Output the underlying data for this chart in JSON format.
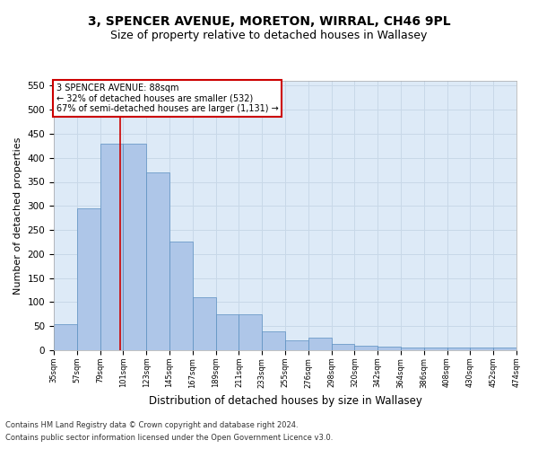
{
  "title1": "3, SPENCER AVENUE, MORETON, WIRRAL, CH46 9PL",
  "title2": "Size of property relative to detached houses in Wallasey",
  "xlabel": "Distribution of detached houses by size in Wallasey",
  "ylabel": "Number of detached properties",
  "bar_values": [
    55,
    295,
    430,
    430,
    370,
    225,
    110,
    75,
    75,
    40,
    20,
    27,
    13,
    10,
    8,
    5,
    5,
    5,
    5,
    5
  ],
  "bar_labels": [
    "35sqm",
    "57sqm",
    "79sqm",
    "101sqm",
    "123sqm",
    "145sqm",
    "167sqm",
    "189sqm",
    "211sqm",
    "233sqm",
    "255sqm",
    "276sqm",
    "298sqm",
    "320sqm",
    "342sqm",
    "364sqm",
    "386sqm",
    "408sqm",
    "430sqm",
    "452sqm",
    "474sqm"
  ],
  "bar_color": "#aec6e8",
  "bar_edge_color": "#5a8fc0",
  "grid_color": "#c8d8e8",
  "background_color": "#ddeaf7",
  "annotation_text": "3 SPENCER AVENUE: 88sqm\n← 32% of detached houses are smaller (532)\n67% of semi-detached houses are larger (1,131) →",
  "annotation_box_color": "#ffffff",
  "annotation_border_color": "#cc0000",
  "ref_line_color": "#cc0000",
  "ref_line_x": 2.36,
  "ylim": [
    0,
    560
  ],
  "yticks": [
    0,
    50,
    100,
    150,
    200,
    250,
    300,
    350,
    400,
    450,
    500,
    550
  ],
  "footer1": "Contains HM Land Registry data © Crown copyright and database right 2024.",
  "footer2": "Contains public sector information licensed under the Open Government Licence v3.0.",
  "title1_fontsize": 10,
  "title2_fontsize": 9,
  "xlabel_fontsize": 8.5,
  "ylabel_fontsize": 8
}
